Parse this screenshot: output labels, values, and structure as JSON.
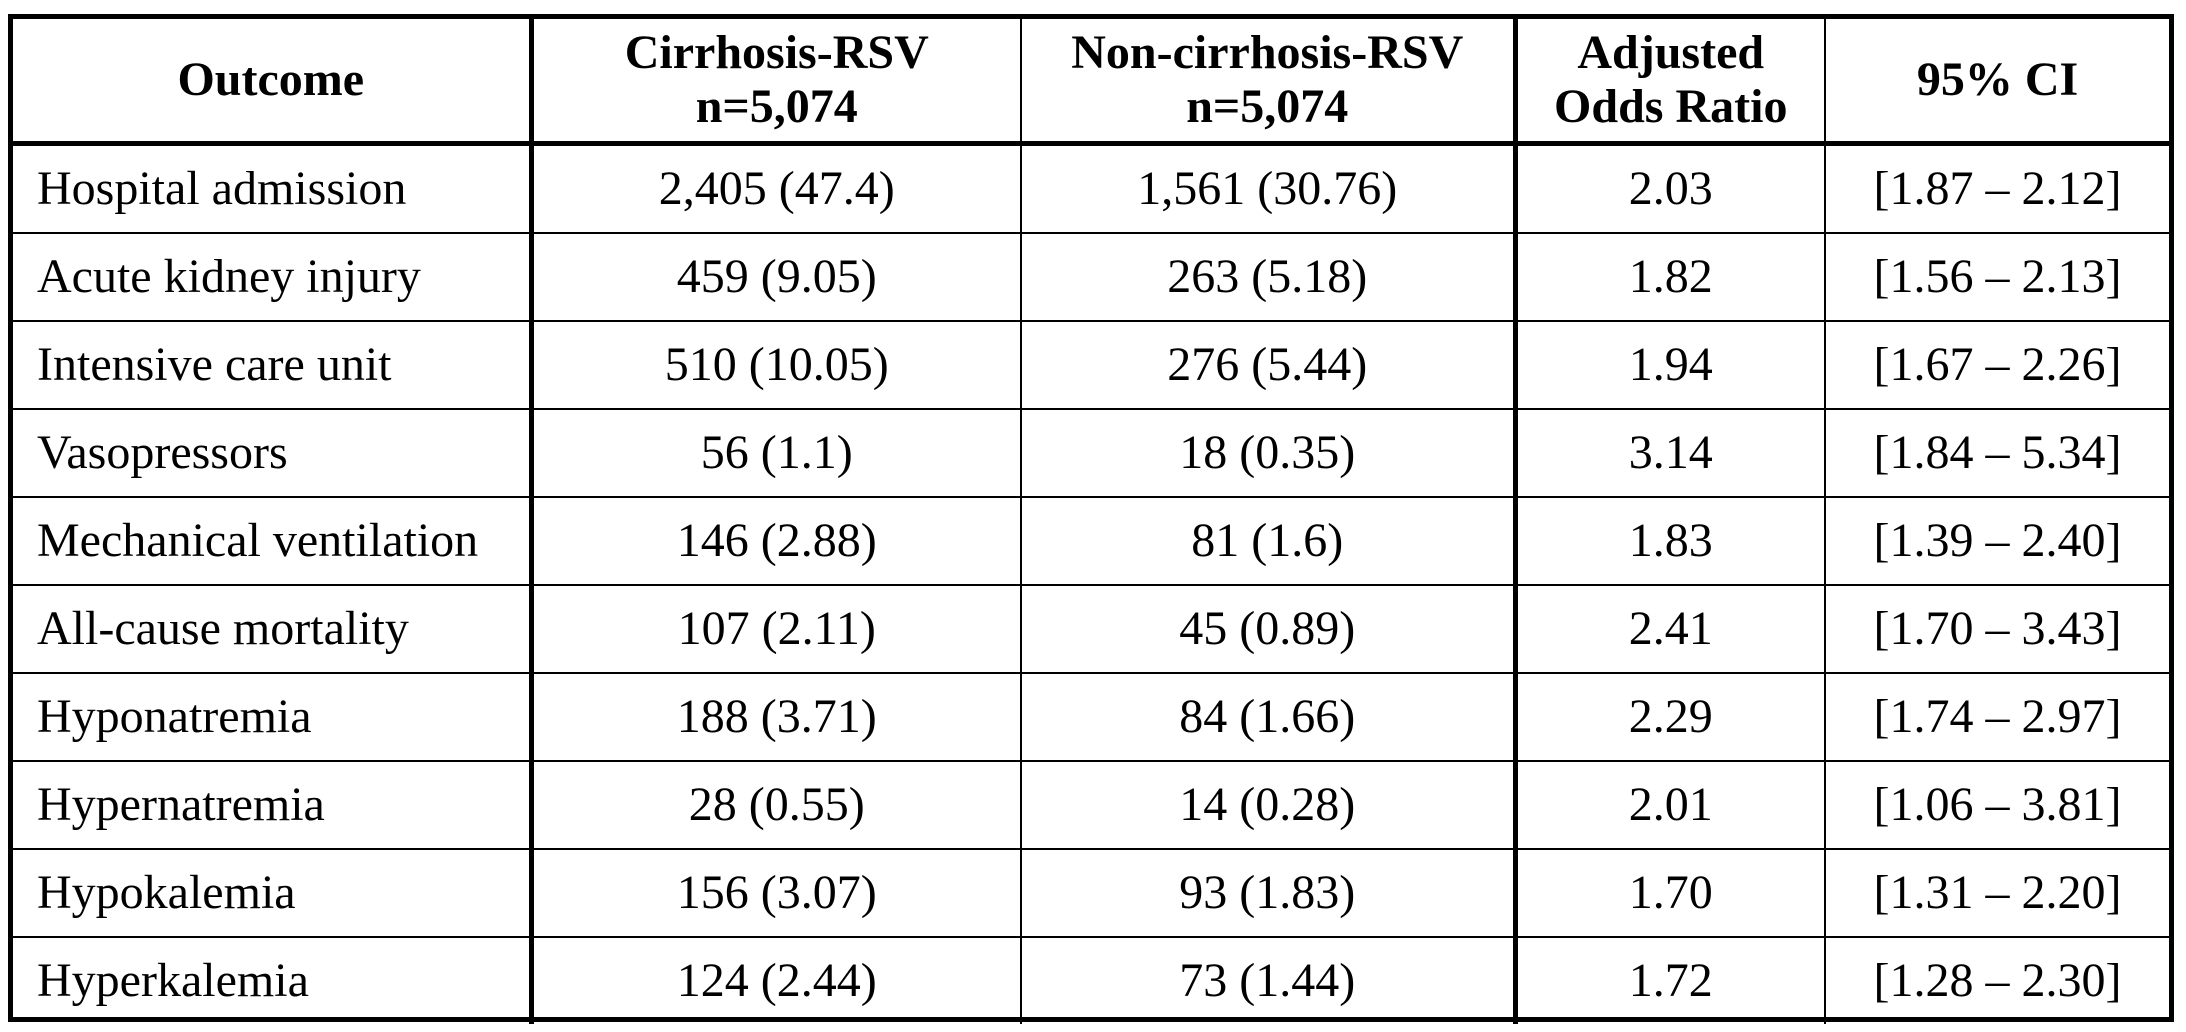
{
  "table": {
    "headers": {
      "outcome": "Outcome",
      "cirrhosis_line1": "Cirrhosis-RSV",
      "cirrhosis_line2": "n=5,074",
      "noncirrhosis_line1": "Non-cirrhosis-RSV",
      "noncirrhosis_line2": "n=5,074",
      "aor_line1": "Adjusted",
      "aor_line2": "Odds Ratio",
      "ci": "95% CI"
    },
    "rows": [
      {
        "outcome": "Hospital admission",
        "cirrhosis": "2,405 (47.4)",
        "noncirrhosis": "1,561 (30.76)",
        "aor": "2.03",
        "ci": "[1.87 – 2.12]"
      },
      {
        "outcome": "Acute kidney injury",
        "cirrhosis": "459 (9.05)",
        "noncirrhosis": "263 (5.18)",
        "aor": "1.82",
        "ci": "[1.56 – 2.13]"
      },
      {
        "outcome": "Intensive care unit",
        "cirrhosis": "510 (10.05)",
        "noncirrhosis": "276 (5.44)",
        "aor": "1.94",
        "ci": "[1.67 – 2.26]"
      },
      {
        "outcome": "Vasopressors",
        "cirrhosis": "56 (1.1)",
        "noncirrhosis": "18 (0.35)",
        "aor": "3.14",
        "ci": "[1.84 – 5.34]"
      },
      {
        "outcome": "Mechanical ventilation",
        "cirrhosis": "146 (2.88)",
        "noncirrhosis": "81 (1.6)",
        "aor": "1.83",
        "ci": "[1.39 – 2.40]"
      },
      {
        "outcome": "All-cause mortality",
        "cirrhosis": "107 (2.11)",
        "noncirrhosis": "45 (0.89)",
        "aor": "2.41",
        "ci": "[1.70 – 3.43]"
      },
      {
        "outcome": "Hyponatremia",
        "cirrhosis": "188 (3.71)",
        "noncirrhosis": "84 (1.66)",
        "aor": "2.29",
        "ci": "[1.74 – 2.97]"
      },
      {
        "outcome": "Hypernatremia",
        "cirrhosis": "28 (0.55)",
        "noncirrhosis": "14 (0.28)",
        "aor": "2.01",
        "ci": "[1.06 – 3.81]"
      },
      {
        "outcome": "Hypokalemia",
        "cirrhosis": "156 (3.07)",
        "noncirrhosis": "93 (1.83)",
        "aor": "1.70",
        "ci": "[1.31 – 2.20]"
      },
      {
        "outcome": "Hyperkalemia",
        "cirrhosis": "124 (2.44)",
        "noncirrhosis": "73 (1.44)",
        "aor": "1.72",
        "ci": "[1.28 – 2.30]"
      }
    ]
  }
}
